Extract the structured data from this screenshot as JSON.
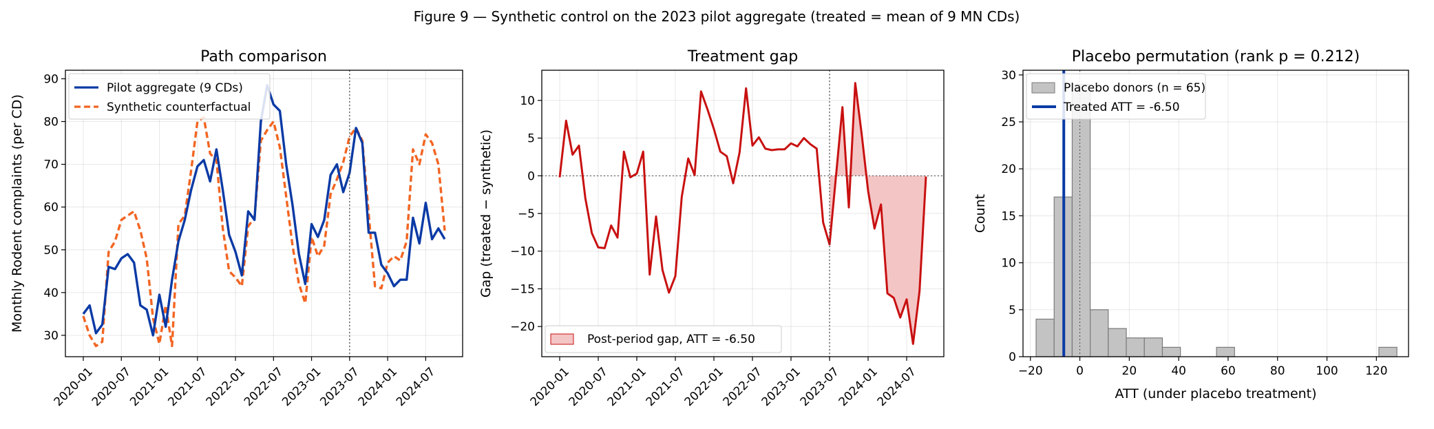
{
  "figure": {
    "suptitle": "Figure 9 — Synthetic control on the 2023 pilot aggregate (treated = mean of 9 MN CDs)"
  },
  "colors": {
    "treated": "#0a3aa5",
    "synthetic": "#f26522",
    "gap": "#c81010",
    "gap_fill": "#f4c5c5",
    "hist_fill": "#c3c3c3",
    "hist_edge": "#7a7a7a"
  },
  "chart_data": [
    {
      "type": "line",
      "title": "Path comparison",
      "xlabel": "",
      "ylabel": "Monthly Rodent complaints (per CD)",
      "x_start": "2020-01",
      "x_ticks": [
        "2020-01",
        "2020-07",
        "2021-01",
        "2021-07",
        "2022-01",
        "2022-07",
        "2023-01",
        "2023-07",
        "2024-01",
        "2024-07"
      ],
      "ylim": [
        25,
        92
      ],
      "y_ticks": [
        30,
        40,
        50,
        60,
        70,
        80,
        90
      ],
      "treatment_start": "2023-07",
      "legend": "top-left",
      "grid": true,
      "series": [
        {
          "name": "Pilot aggregate (9 CDs)",
          "style": "solid",
          "values": [
            35,
            37,
            30.5,
            32.5,
            46,
            45.5,
            48,
            49,
            47,
            37,
            36,
            30,
            39.5,
            32,
            43,
            52,
            57,
            64,
            69.5,
            71,
            66,
            73.5,
            64,
            53.5,
            49.5,
            44,
            59,
            57,
            80,
            88.5,
            84,
            82.5,
            70,
            60.5,
            49,
            42,
            56,
            53,
            57,
            67.5,
            70,
            63.5,
            68,
            78.5,
            75,
            54,
            54,
            46.5,
            44.5,
            41.5,
            43,
            43,
            57.5,
            51.5,
            61,
            52.5,
            55,
            52.5
          ]
        },
        {
          "name": "Synthetic counterfactual",
          "style": "dashed",
          "values": [
            34.5,
            30,
            27.5,
            28.5,
            49.5,
            52,
            57,
            58,
            59,
            54.5,
            48,
            34,
            28,
            37,
            27.5,
            56,
            58,
            68.5,
            80,
            81,
            72.5,
            71,
            55,
            45,
            43.5,
            41.5,
            55.5,
            57.5,
            75.5,
            78,
            80,
            74,
            62.5,
            51,
            42,
            37.5,
            53,
            48.5,
            51,
            63,
            66.5,
            70.5,
            76.5,
            78.5,
            75.5,
            58.5,
            41.5,
            41,
            47,
            48.5,
            47.5,
            52,
            73.5,
            70,
            77,
            75,
            70,
            54.5
          ]
        }
      ]
    },
    {
      "type": "line",
      "title": "Treatment gap",
      "xlabel": "",
      "ylabel": "Gap (treated − synthetic)",
      "x_start": "2020-01",
      "x_ticks": [
        "2020-01",
        "2020-07",
        "2021-01",
        "2021-07",
        "2022-01",
        "2022-07",
        "2023-01",
        "2023-07",
        "2024-01",
        "2024-07"
      ],
      "ylim": [
        -24,
        14
      ],
      "y_ticks": [
        -20,
        -15,
        -10,
        -5,
        0,
        5,
        10
      ],
      "treatment_start": "2023-07",
      "legend": "bottom-left",
      "grid": true,
      "fill_label": "Post-period gap, ATT = -6.50",
      "values": [
        -0.2,
        7.3,
        2.8,
        4,
        -3,
        -7.6,
        -9.5,
        -9.6,
        -6.6,
        -8.2,
        3.2,
        -0.2,
        0.3,
        3.2,
        -13.1,
        -5.4,
        -12.5,
        -15.5,
        -13.3,
        -2.8,
        2.3,
        0.1,
        11.2,
        8.8,
        6.2,
        3.2,
        2.6,
        -1,
        3.1,
        11.6,
        4,
        5.1,
        3.6,
        3.4,
        3.5,
        3.5,
        4.3,
        3.9,
        5,
        4.2,
        3.6,
        -6.2,
        -9.1,
        -0.1,
        9.1,
        -4.2,
        12.3,
        5.5,
        -2,
        -7,
        -3.8,
        -15.6,
        -16.2,
        -18.8,
        -16.4,
        -22.3,
        -15.3,
        -0.1
      ]
    },
    {
      "type": "bar",
      "title": "Placebo permutation (rank p = 0.212)",
      "xlabel": "ATT (under placebo treatment)",
      "ylabel": "Count",
      "xlim": [
        -23,
        133
      ],
      "ylim": [
        0,
        30.5
      ],
      "x_ticks": [
        -20,
        0,
        20,
        40,
        60,
        80,
        100,
        120
      ],
      "y_ticks": [
        0,
        5,
        10,
        15,
        20,
        25,
        30
      ],
      "legend": "top-left",
      "grid": true,
      "bin_edges": [
        -17.7,
        -10.4,
        -3.1,
        4.2,
        11.5,
        18.8,
        26.1,
        33.4,
        40.7,
        48,
        55.3,
        62.6,
        69.9,
        77.2,
        84.5,
        91.8,
        99.1,
        106.4,
        113.7,
        121,
        128.3
      ],
      "counts": [
        4,
        17,
        29,
        5,
        3,
        2,
        2,
        1,
        0,
        0,
        1,
        0,
        0,
        0,
        0,
        0,
        0,
        0,
        0,
        1
      ],
      "histogram_label": "Placebo donors (n = 65)",
      "treated_att": -6.5,
      "treated_label": "Treated ATT = -6.50"
    }
  ]
}
